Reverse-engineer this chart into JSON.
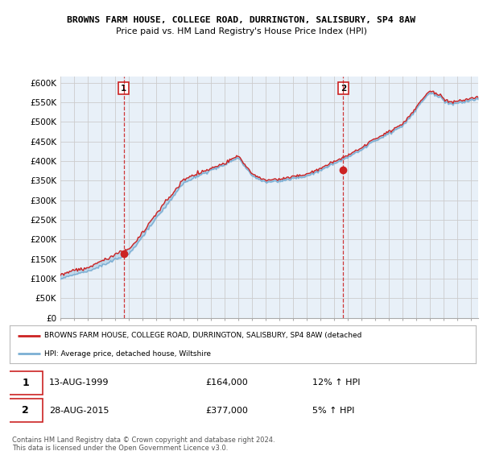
{
  "title": "BROWNS FARM HOUSE, COLLEGE ROAD, DURRINGTON, SALISBURY, SP4 8AW",
  "subtitle": "Price paid vs. HM Land Registry's House Price Index (HPI)",
  "ylabel_ticks": [
    "£0",
    "£50K",
    "£100K",
    "£150K",
    "£200K",
    "£250K",
    "£300K",
    "£350K",
    "£400K",
    "£450K",
    "£500K",
    "£550K",
    "£600K"
  ],
  "ytick_vals": [
    0,
    50000,
    100000,
    150000,
    200000,
    250000,
    300000,
    350000,
    400000,
    450000,
    500000,
    550000,
    600000
  ],
  "ylim": [
    0,
    615000
  ],
  "sale1_date": 1999.62,
  "sale1_price": 164000,
  "sale2_date": 2015.65,
  "sale2_price": 377000,
  "hpi_color": "#7bafd4",
  "price_color": "#cc2222",
  "vline_color": "#cc2222",
  "fill_color": "#dce8f5",
  "grid_color": "#cccccc",
  "legend_label_price": "BROWNS FARM HOUSE, COLLEGE ROAD, DURRINGTON, SALISBURY, SP4 8AW (detached",
  "legend_label_hpi": "HPI: Average price, detached house, Wiltshire",
  "table_row1": [
    "1",
    "13-AUG-1999",
    "£164,000",
    "12% ↑ HPI"
  ],
  "table_row2": [
    "2",
    "28-AUG-2015",
    "£377,000",
    "5% ↑ HPI"
  ],
  "footer": "Contains HM Land Registry data © Crown copyright and database right 2024.\nThis data is licensed under the Open Government Licence v3.0.",
  "background_color": "#ffffff",
  "chart_bg_color": "#e8f0f8"
}
